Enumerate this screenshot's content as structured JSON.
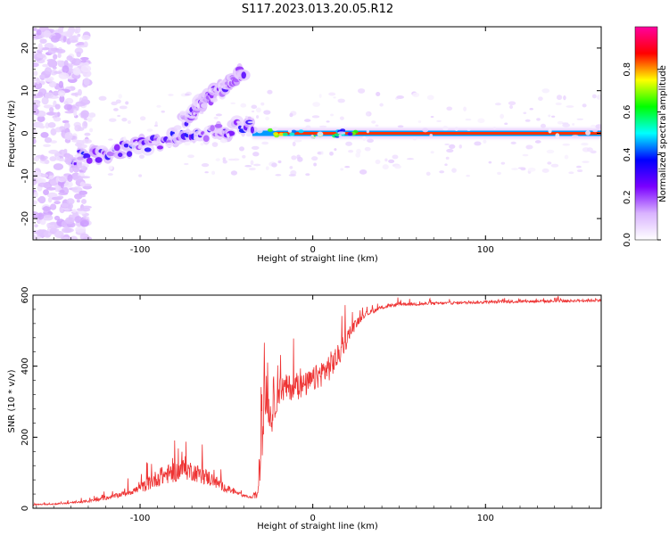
{
  "title": "S117.2023.013.20.05.R12",
  "chart_data": [
    {
      "type": "heatmap",
      "xlabel": "Height of straight line (km)",
      "ylabel": "Frequency (Hz)",
      "xlim": [
        -162,
        167
      ],
      "ylim": [
        -25,
        25
      ],
      "xticks": [
        -100,
        0,
        100
      ],
      "yticks": [
        -20,
        -10,
        0,
        10,
        20
      ],
      "colorbar": {
        "label": "Normalized spectral amplitude",
        "range": [
          0,
          1
        ],
        "ticks": [
          0.0,
          0.2,
          0.4,
          0.6,
          0.8
        ],
        "tick_labels": [
          "0.0",
          "0.2",
          "0.4",
          "0.6",
          "0.8"
        ],
        "colors": [
          "#ffffff",
          "#d9b3ff",
          "#7a00ff",
          "#0000ff",
          "#00ffff",
          "#00ff00",
          "#ffff00",
          "#ff0000",
          "#ff00a0"
        ]
      },
      "features": [
        {
          "kind": "carrier",
          "x": [
            -35,
            167
          ],
          "y": [
            0,
            0
          ],
          "amplitude": 0.85
        },
        {
          "kind": "drift",
          "x": [
            -140,
            -35
          ],
          "y": [
            -6,
            2
          ],
          "amplitude": 0.35
        },
        {
          "kind": "drift",
          "x": [
            -75,
            -40
          ],
          "y": [
            3,
            15
          ],
          "amplitude": 0.3
        },
        {
          "kind": "scatter-noise",
          "x": [
            -162,
            -130
          ],
          "y": [
            -25,
            25
          ],
          "amplitude": 0.1
        }
      ]
    },
    {
      "type": "line",
      "xlabel": "Height of straight line (km)",
      "ylabel": "SNR (10 * v/v)",
      "xlim": [
        -162,
        167
      ],
      "ylim": [
        0,
        600
      ],
      "xticks": [
        -100,
        0,
        100
      ],
      "yticks": [
        0,
        200,
        400,
        600
      ],
      "series": [
        {
          "color": "#ee3333",
          "x": [
            -162,
            -150,
            -140,
            -130,
            -120,
            -110,
            -100,
            -95,
            -90,
            -85,
            -80,
            -75,
            -70,
            -65,
            -60,
            -55,
            -50,
            -45,
            -40,
            -35,
            -32,
            -30,
            -28,
            -26,
            -24,
            -22,
            -20,
            -15,
            -10,
            -5,
            0,
            5,
            10,
            15,
            20,
            25,
            30,
            40,
            50,
            60,
            80,
            100,
            120,
            140,
            160,
            167
          ],
          "y": [
            10,
            12,
            15,
            20,
            28,
            40,
            55,
            70,
            85,
            95,
            100,
            110,
            105,
            95,
            85,
            70,
            55,
            45,
            35,
            30,
            40,
            150,
            320,
            300,
            250,
            290,
            330,
            340,
            340,
            345,
            360,
            380,
            400,
            430,
            480,
            520,
            545,
            565,
            575,
            575,
            578,
            580,
            582,
            583,
            585,
            586
          ],
          "noise": [
            3,
            4,
            5,
            7,
            10,
            15,
            25,
            40,
            50,
            55,
            55,
            60,
            55,
            50,
            45,
            35,
            20,
            12,
            8,
            6,
            30,
            120,
            160,
            120,
            90,
            90,
            80,
            75,
            70,
            70,
            70,
            75,
            80,
            65,
            50,
            25,
            15,
            10,
            9,
            9,
            8,
            8,
            8,
            8,
            8,
            8
          ]
        }
      ]
    }
  ]
}
